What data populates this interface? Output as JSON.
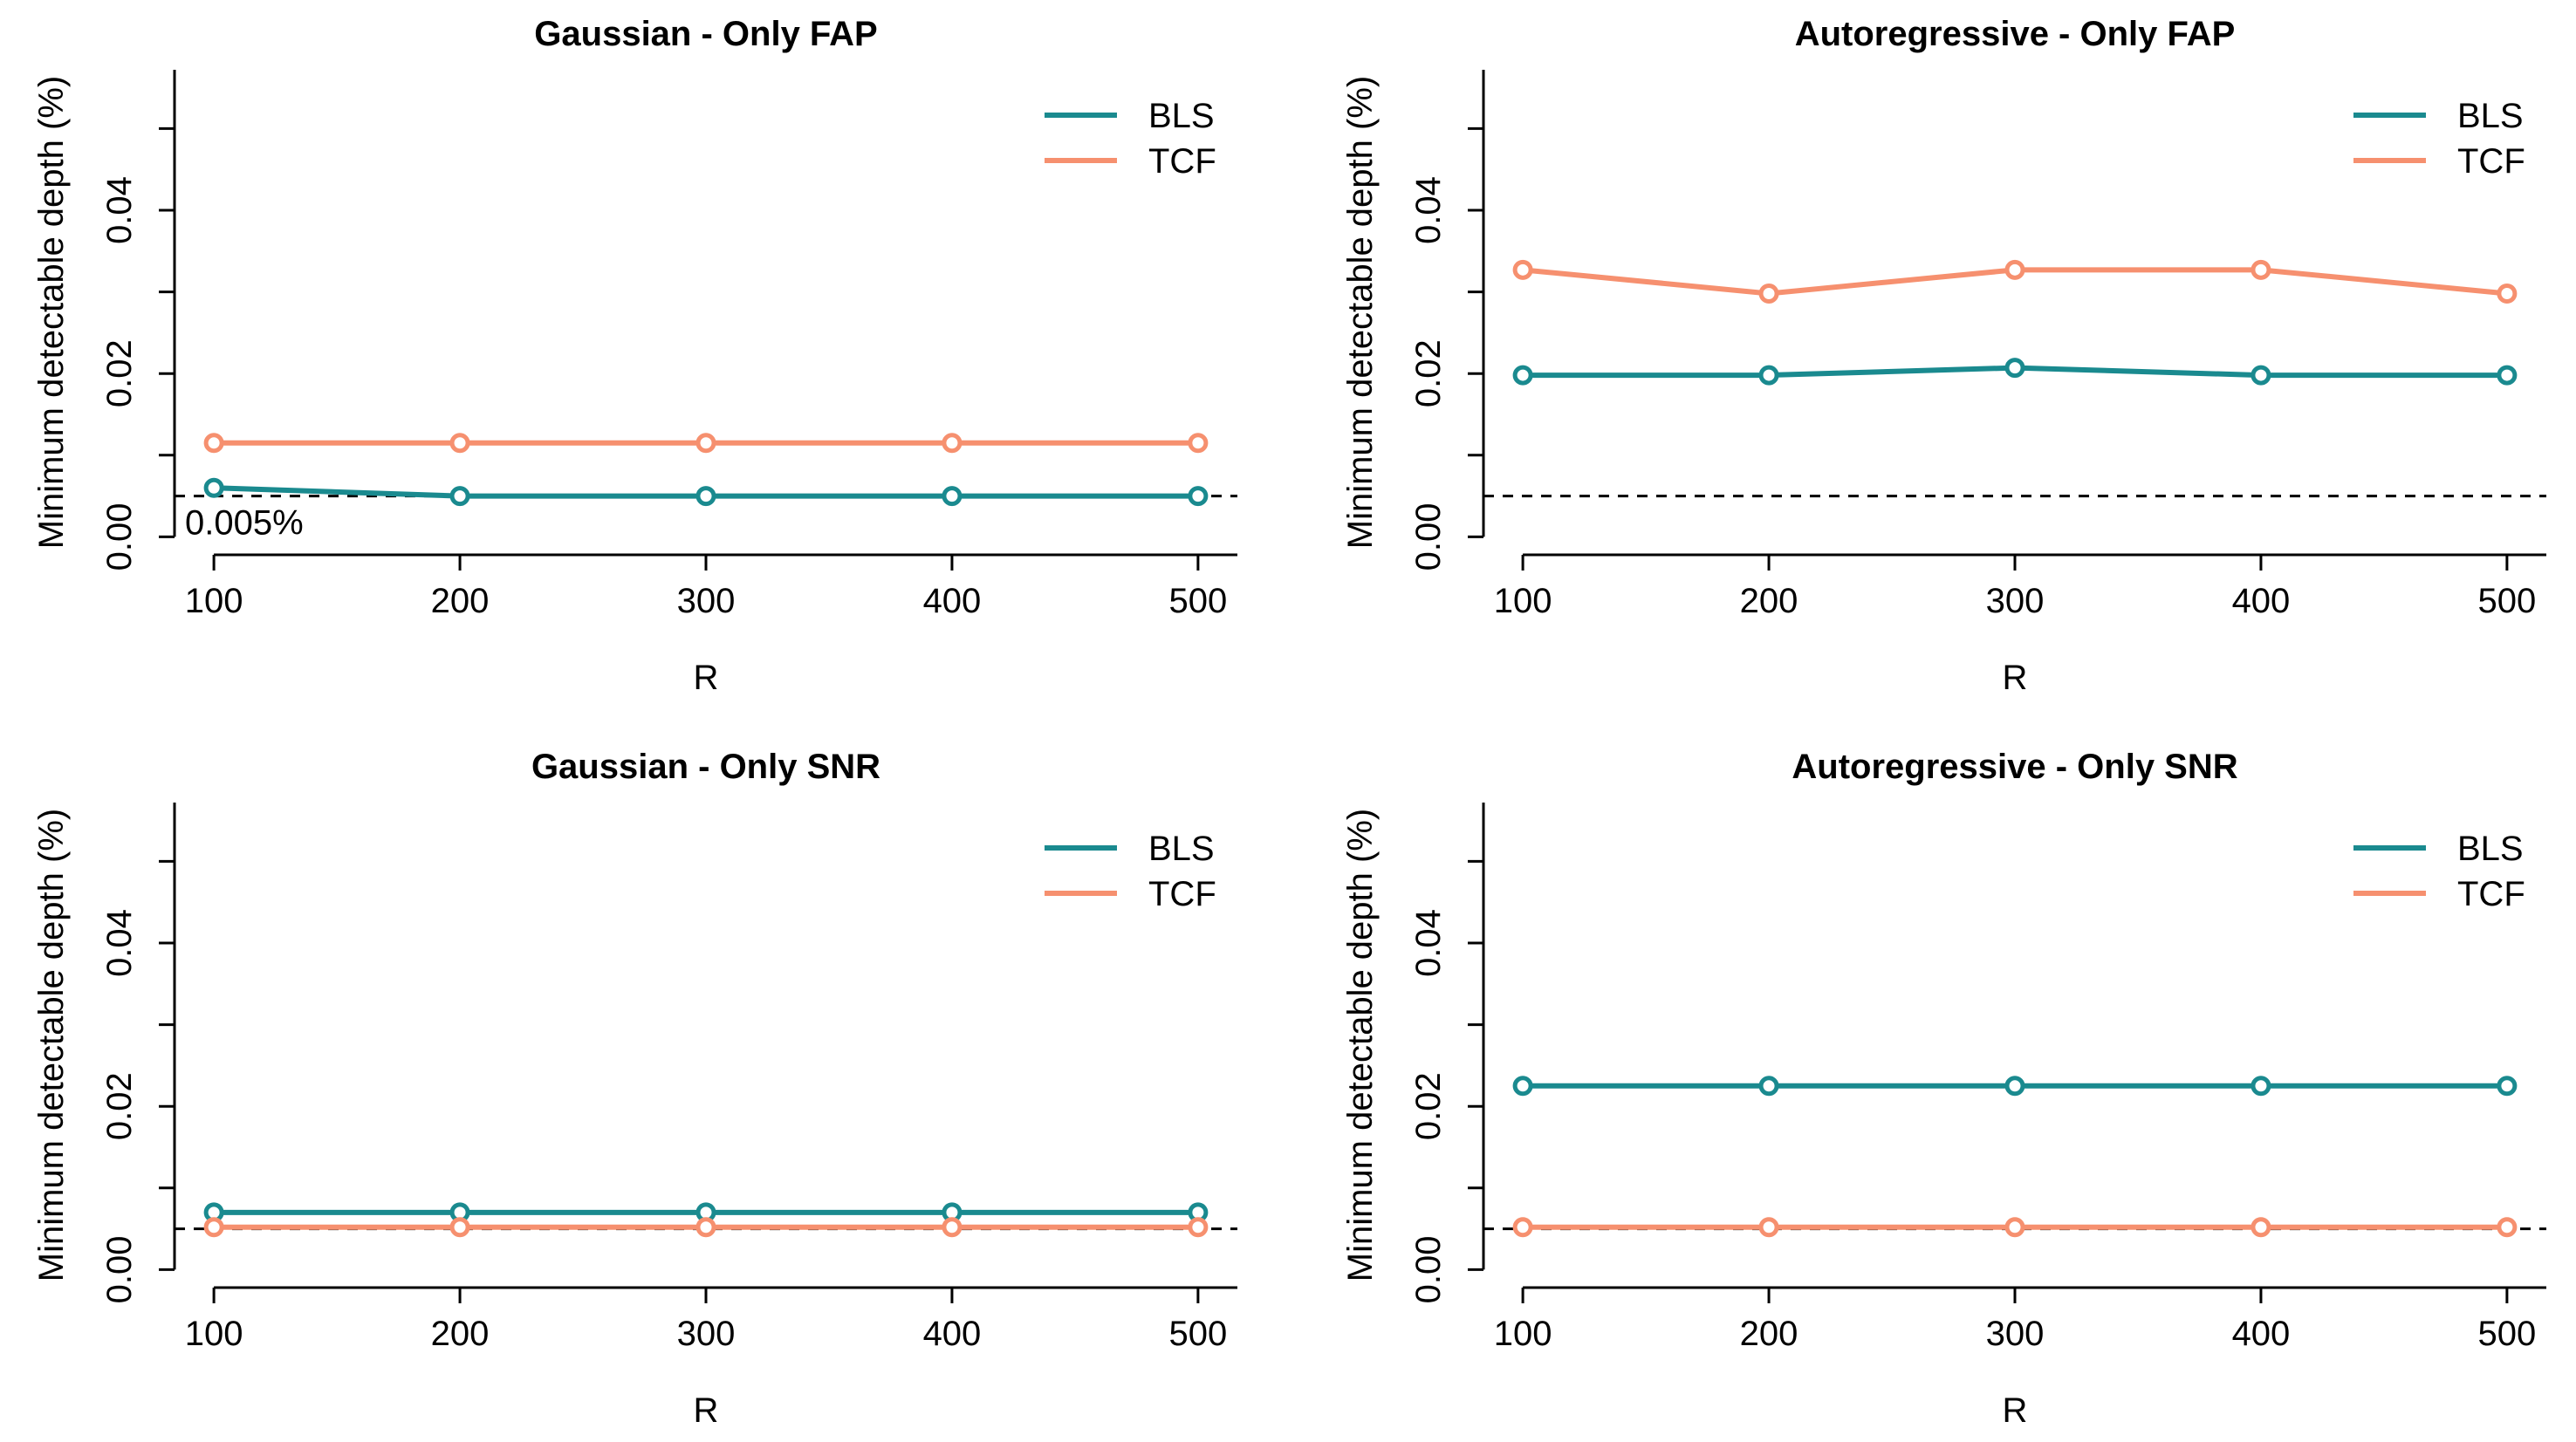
{
  "colors": {
    "BLS": "#1a8a8f",
    "TCF": "#f6906f",
    "reference_line": "#000000"
  },
  "chart_data": [
    {
      "type": "line",
      "title": "Gaussian - Only FAP",
      "xlabel": "R",
      "ylabel": "Minimum detectable depth (%)",
      "x": [
        100,
        200,
        300,
        400,
        500
      ],
      "xticks": [
        100,
        200,
        300,
        400,
        500
      ],
      "yticks": [
        0.0,
        0.01,
        0.02,
        0.03,
        0.04,
        0.05
      ],
      "ytick_labels": [
        "0.00",
        "",
        "0.02",
        "",
        "0.04",
        ""
      ],
      "xlim": [
        84,
        516
      ],
      "ylim": [
        -0.0022,
        0.0572
      ],
      "series": [
        {
          "name": "BLS",
          "values": [
            0.006,
            0.005,
            0.005,
            0.005,
            0.005
          ]
        },
        {
          "name": "TCF",
          "values": [
            0.0115,
            0.0115,
            0.0115,
            0.0115,
            0.0115
          ]
        }
      ],
      "hline": 0.005,
      "annotation": "0.005%",
      "legend": "top-right"
    },
    {
      "type": "line",
      "title": "Autoregressive - Only FAP",
      "xlabel": "R",
      "ylabel": "Minimum detectable depth (%)",
      "x": [
        100,
        200,
        300,
        400,
        500
      ],
      "xticks": [
        100,
        200,
        300,
        400,
        500
      ],
      "yticks": [
        0.0,
        0.01,
        0.02,
        0.03,
        0.04,
        0.05
      ],
      "ytick_labels": [
        "0.00",
        "",
        "0.02",
        "",
        "0.04",
        ""
      ],
      "xlim": [
        84,
        516
      ],
      "ylim": [
        -0.0022,
        0.0572
      ],
      "series": [
        {
          "name": "BLS",
          "values": [
            0.0198,
            0.0198,
            0.0207,
            0.0198,
            0.0198
          ]
        },
        {
          "name": "TCF",
          "values": [
            0.0327,
            0.0298,
            0.0327,
            0.0327,
            0.0298
          ]
        }
      ],
      "hline": 0.005,
      "annotation": "",
      "legend": "top-right"
    },
    {
      "type": "line",
      "title": "Gaussian - Only SNR",
      "xlabel": "R",
      "ylabel": "Minimum detectable depth (%)",
      "x": [
        100,
        200,
        300,
        400,
        500
      ],
      "xticks": [
        100,
        200,
        300,
        400,
        500
      ],
      "yticks": [
        0.0,
        0.01,
        0.02,
        0.03,
        0.04,
        0.05
      ],
      "ytick_labels": [
        "0.00",
        "",
        "0.02",
        "",
        "0.04",
        ""
      ],
      "xlim": [
        84,
        516
      ],
      "ylim": [
        -0.0022,
        0.0572
      ],
      "series": [
        {
          "name": "BLS",
          "values": [
            0.007,
            0.007,
            0.007,
            0.007,
            0.007
          ]
        },
        {
          "name": "TCF",
          "values": [
            0.0052,
            0.0052,
            0.0052,
            0.0052,
            0.0052
          ]
        }
      ],
      "hline": 0.005,
      "annotation": "",
      "legend": "top-right"
    },
    {
      "type": "line",
      "title": "Autoregressive - Only SNR",
      "xlabel": "R",
      "ylabel": "Minimum detectable depth (%)",
      "x": [
        100,
        200,
        300,
        400,
        500
      ],
      "xticks": [
        100,
        200,
        300,
        400,
        500
      ],
      "yticks": [
        0.0,
        0.01,
        0.02,
        0.03,
        0.04,
        0.05
      ],
      "ytick_labels": [
        "0.00",
        "",
        "0.02",
        "",
        "0.04",
        ""
      ],
      "xlim": [
        84,
        516
      ],
      "ylim": [
        -0.0022,
        0.0572
      ],
      "series": [
        {
          "name": "BLS",
          "values": [
            0.0225,
            0.0225,
            0.0225,
            0.0225,
            0.0225
          ]
        },
        {
          "name": "TCF",
          "values": [
            0.0052,
            0.0052,
            0.0052,
            0.0052,
            0.0052
          ]
        }
      ],
      "hline": 0.005,
      "annotation": "",
      "legend": "top-right"
    }
  ]
}
